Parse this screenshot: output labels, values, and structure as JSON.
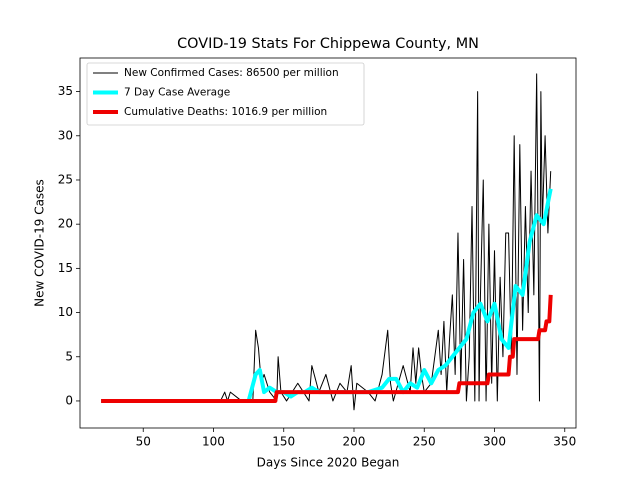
{
  "chart_data": {
    "type": "line",
    "title": "COVID-19 Stats For Chippewa County, MN",
    "x_label": "Days Since 2020 Began",
    "y_label": "New COVID-19 Cases",
    "xlim": [
      5,
      358
    ],
    "ylim": [
      -3.06,
      38.8
    ],
    "xticks": [
      50,
      100,
      150,
      200,
      250,
      300,
      350
    ],
    "yticks": [
      0,
      5,
      10,
      15,
      20,
      25,
      30,
      35
    ],
    "legend": "upper left",
    "series": [
      {
        "name": "New Confirmed Cases: 86500 per million",
        "color": "#000000",
        "width": 1,
        "x": [
          20,
          105,
          108,
          110,
          112,
          120,
          128,
          130,
          132,
          134,
          136,
          140,
          145,
          146,
          148,
          152,
          160,
          168,
          170,
          175,
          180,
          185,
          190,
          195,
          198,
          200,
          202,
          210,
          215,
          220,
          224,
          226,
          228,
          235,
          240,
          242,
          244,
          246,
          248,
          250,
          255,
          260,
          262,
          264,
          266,
          268,
          270,
          272,
          274,
          276,
          278,
          280,
          282,
          284,
          286,
          288,
          289,
          290,
          292,
          294,
          296,
          298,
          300,
          302,
          304,
          306,
          308,
          310,
          312,
          314,
          316,
          318,
          320,
          322,
          324,
          326,
          328,
          330,
          332,
          333,
          334,
          336,
          338,
          340
        ],
        "values": [
          0,
          0,
          1,
          0,
          1,
          0,
          0,
          8,
          6,
          2,
          3,
          1,
          0,
          5,
          1,
          0,
          2,
          0,
          4,
          1,
          3,
          0,
          2,
          1,
          4,
          -1,
          2,
          1,
          0,
          3,
          8,
          2,
          0,
          4,
          1,
          6,
          2,
          6,
          3,
          1,
          2,
          8,
          3,
          9,
          1,
          7,
          12,
          3,
          19,
          2,
          16,
          0,
          5,
          22,
          0,
          35,
          0,
          12,
          25,
          0,
          20,
          2,
          17,
          0,
          14,
          5,
          19,
          19,
          5,
          30,
          3,
          29,
          8,
          22,
          10,
          26,
          12,
          37,
          0,
          35,
          20,
          30,
          19,
          26
        ]
      },
      {
        "name": "7 Day Case Average",
        "color": "#00ffff",
        "width": 4,
        "x": [
          20,
          125,
          130,
          133,
          136,
          140,
          145,
          150,
          155,
          160,
          165,
          170,
          175,
          180,
          190,
          200,
          210,
          220,
          225,
          230,
          235,
          240,
          245,
          250,
          255,
          260,
          265,
          270,
          275,
          280,
          285,
          290,
          295,
          300,
          305,
          310,
          315,
          320,
          325,
          330,
          335,
          340
        ],
        "values": [
          0,
          0,
          3,
          3.5,
          1,
          1.5,
          1,
          1,
          0.5,
          1,
          1,
          1.5,
          1,
          1,
          1,
          1,
          1,
          1.5,
          2.5,
          2.5,
          1,
          2,
          1.5,
          3.5,
          2,
          3.5,
          4,
          5,
          6,
          7,
          10,
          11,
          9,
          11,
          7,
          6,
          13,
          12,
          18,
          21,
          20,
          24
        ]
      },
      {
        "name": "Cumulative Deaths: 1016.9 per million",
        "color": "#ee0000",
        "width": 4,
        "x": [
          20,
          144,
          145,
          274,
          275,
          295,
          296,
          310,
          311,
          313,
          314,
          331,
          332,
          336,
          337,
          339,
          340
        ],
        "values": [
          0,
          0,
          1,
          1,
          2,
          2,
          3,
          3,
          5,
          5,
          7,
          7,
          8,
          8,
          9,
          9,
          12
        ]
      }
    ]
  }
}
